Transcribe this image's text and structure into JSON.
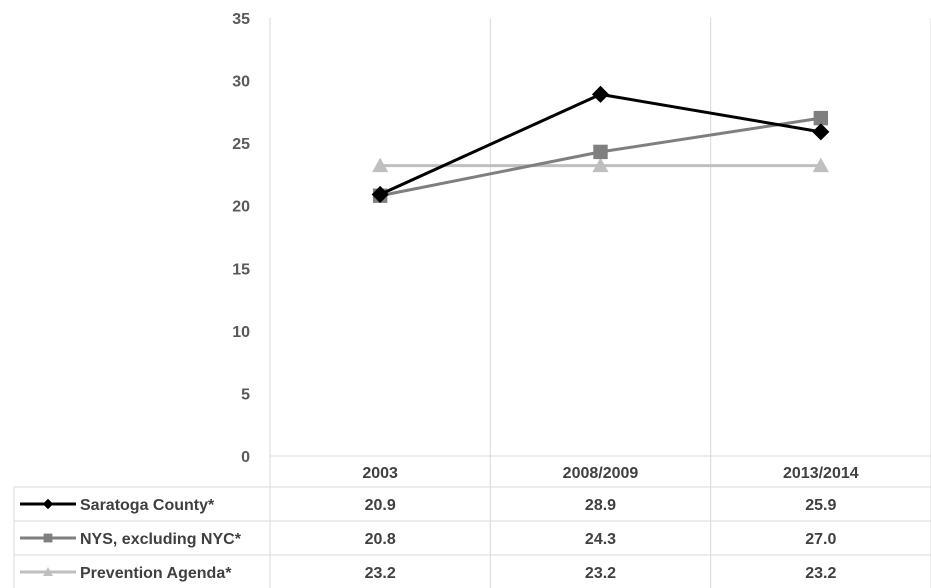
{
  "chart_data": {
    "type": "line",
    "title": "",
    "xlabel": "",
    "ylabel": "",
    "categories": [
      "2003",
      "2008/2009",
      "2013/2014"
    ],
    "ylim": [
      0,
      35
    ],
    "yticks": [
      "0",
      "5",
      "10",
      "15",
      "20",
      "25",
      "30",
      "35"
    ],
    "grid": {
      "vertical": true,
      "horizontal": false
    },
    "legend": "data-table-below",
    "series": [
      {
        "name": "Saratoga County*",
        "values": [
          20.9,
          28.9,
          25.9
        ],
        "labels": [
          "20.9",
          "28.9",
          "25.9"
        ],
        "color": "#000000",
        "marker": "diamond"
      },
      {
        "name": "NYS, excluding NYC*",
        "values": [
          20.8,
          24.3,
          27.0
        ],
        "labels": [
          "20.8",
          "24.3",
          "27.0"
        ],
        "color": "#7f7f7f",
        "marker": "square"
      },
      {
        "name": "Prevention Agenda*",
        "values": [
          23.2,
          23.2,
          23.2
        ],
        "labels": [
          "23.2",
          "23.2",
          "23.2"
        ],
        "color": "#bfbfbf",
        "marker": "triangle"
      }
    ]
  }
}
